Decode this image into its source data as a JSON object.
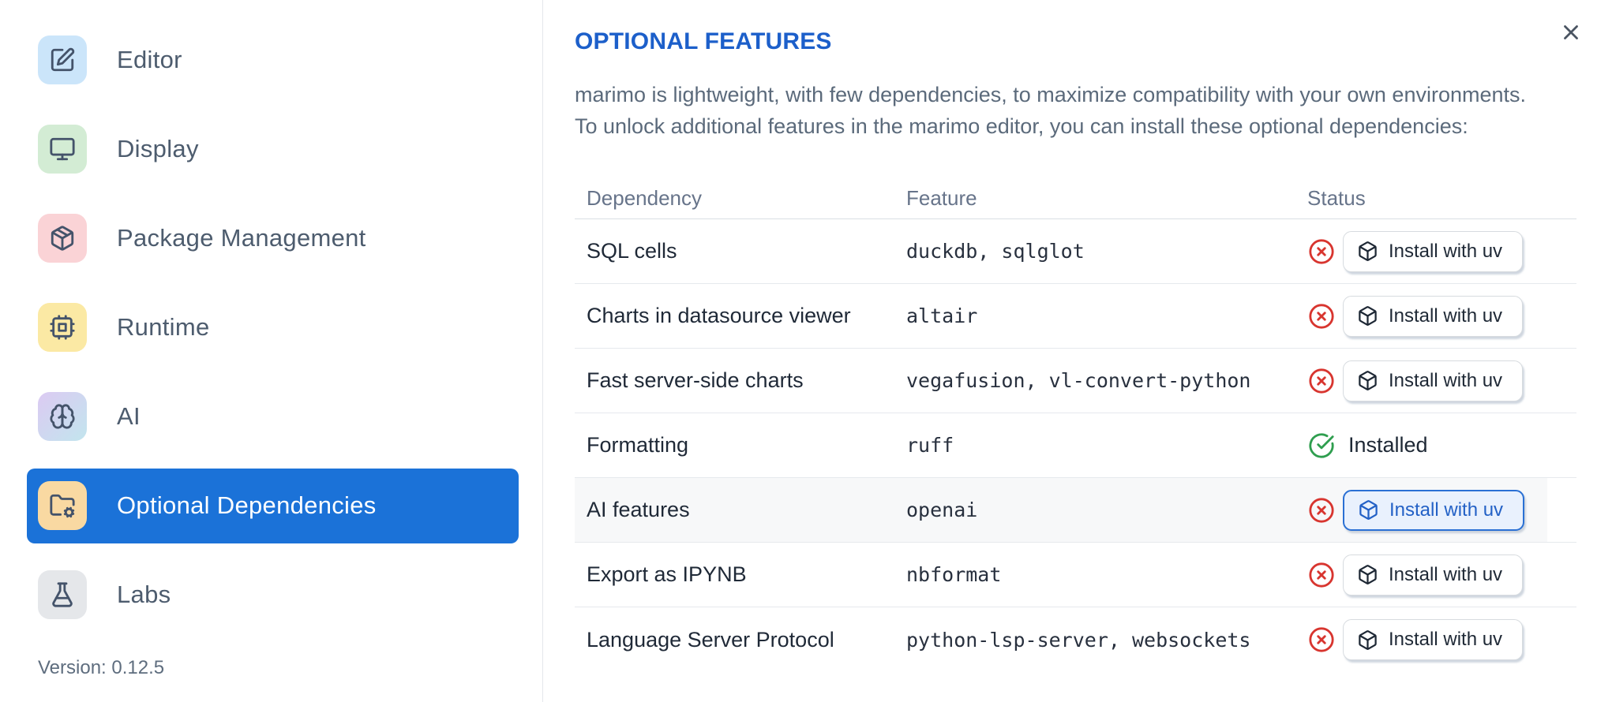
{
  "colors": {
    "accent": "#1b72d8",
    "title_blue": "#1c5fca",
    "danger": "#d8352f",
    "success": "#2f9e4f",
    "focus_border": "#2a70d4",
    "focus_text": "#2361c6"
  },
  "sidebar": {
    "items": [
      {
        "label": "Editor",
        "icon": "square-pen",
        "icon_bg": "#cbe5fa",
        "selected": false
      },
      {
        "label": "Display",
        "icon": "monitor",
        "icon_bg": "#d3ecd4",
        "selected": false
      },
      {
        "label": "Package Management",
        "icon": "package",
        "icon_bg": "#fad3d6",
        "selected": false
      },
      {
        "label": "Runtime",
        "icon": "cpu",
        "icon_bg": "#fbe9a4",
        "selected": false
      },
      {
        "label": "AI",
        "icon": "brain",
        "icon_bg": "gradient",
        "selected": false
      },
      {
        "label": "Optional Dependencies",
        "icon": "folder-cog",
        "icon_bg": "#f9d9a2",
        "selected": true
      },
      {
        "label": "Labs",
        "icon": "flask",
        "icon_bg": "#e5e7ea",
        "selected": false
      }
    ],
    "version": "Version: 0.12.5"
  },
  "panel": {
    "title": "OPTIONAL FEATURES",
    "description_line1": "marimo is lightweight, with few dependencies, to maximize compatibility with your own environments.",
    "description_line2": "To unlock additional features in the marimo editor, you can install these optional dependencies:",
    "close_icon": "x-icon",
    "table": {
      "columns": {
        "dependency": "Dependency",
        "feature": "Feature",
        "status": "Status"
      },
      "install_button_label": "Install with uv",
      "installed_label": "Installed",
      "rows": [
        {
          "dependency": "SQL cells",
          "feature": "duckdb, sqlglot",
          "installed": false,
          "highlighted": false
        },
        {
          "dependency": "Charts in datasource viewer",
          "feature": "altair",
          "installed": false,
          "highlighted": false
        },
        {
          "dependency": "Fast server-side charts",
          "feature": "vegafusion, vl-convert-python",
          "installed": false,
          "highlighted": false
        },
        {
          "dependency": "Formatting",
          "feature": "ruff",
          "installed": true,
          "highlighted": false
        },
        {
          "dependency": "AI features",
          "feature": "openai",
          "installed": false,
          "highlighted": true
        },
        {
          "dependency": "Export as IPYNB",
          "feature": "nbformat",
          "installed": false,
          "highlighted": false
        },
        {
          "dependency": "Language Server Protocol",
          "feature": "python-lsp-server, websockets",
          "installed": false,
          "highlighted": false
        }
      ]
    }
  }
}
